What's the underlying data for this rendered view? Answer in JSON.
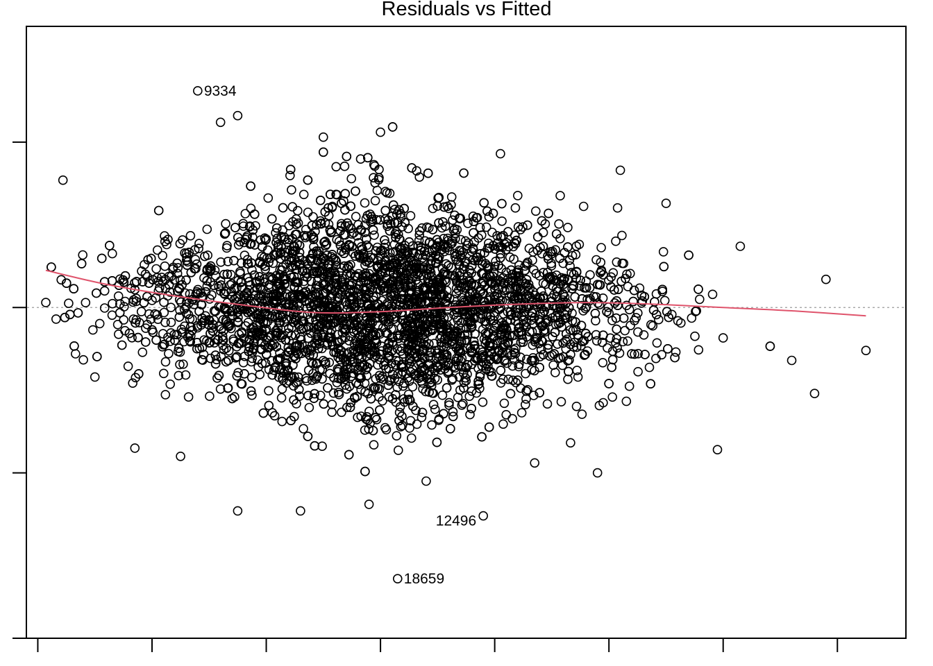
{
  "chart_data": {
    "type": "scatter",
    "title": "Residuals vs Fitted",
    "xlabel": "",
    "ylabel": "",
    "xlim": [
      -0.1,
      7.6
    ],
    "ylim": [
      -2,
      1.7
    ],
    "x_ticks": [
      0,
      1,
      2,
      3,
      4,
      5,
      6,
      7
    ],
    "y_ticks": [
      -2,
      -1,
      0,
      1
    ],
    "tick_labels_shown": false,
    "reference_line": {
      "y": 0,
      "style": "dotted",
      "color": "#999999"
    },
    "smoother": {
      "color": "#DF536B",
      "x": [
        0.07,
        0.6,
        1.2,
        1.8,
        2.4,
        3.0,
        3.6,
        4.2,
        4.8,
        5.4,
        6.0,
        6.6,
        7.25
      ],
      "y": [
        0.225,
        0.14,
        0.07,
        0.015,
        -0.03,
        -0.025,
        0.0,
        0.02,
        0.03,
        0.02,
        0.0,
        -0.02,
        -0.05
      ]
    },
    "point_style": {
      "shape": "open-circle",
      "color": "#000000"
    },
    "labeled_points": [
      {
        "id": "9334",
        "x": 1.4,
        "y": 1.31
      },
      {
        "id": "12496",
        "x": 3.9,
        "y": -1.26
      },
      {
        "id": "18659",
        "x": 3.15,
        "y": -1.64
      }
    ],
    "notable_points": [
      {
        "x": 0.07,
        "y": 0.03
      },
      {
        "x": 0.22,
        "y": 0.77
      },
      {
        "x": 0.16,
        "y": -0.07
      },
      {
        "x": 0.33,
        "y": -0.28
      },
      {
        "x": 0.5,
        "y": -0.42
      },
      {
        "x": 0.85,
        "y": -0.85
      },
      {
        "x": 1.25,
        "y": -0.9
      },
      {
        "x": 1.6,
        "y": 1.12
      },
      {
        "x": 1.75,
        "y": 1.16
      },
      {
        "x": 3.0,
        "y": 1.06
      },
      {
        "x": 2.5,
        "y": 1.03
      },
      {
        "x": 4.05,
        "y": 0.93
      },
      {
        "x": 5.1,
        "y": 0.83
      },
      {
        "x": 5.5,
        "y": 0.63
      },
      {
        "x": 6.15,
        "y": 0.37
      },
      {
        "x": 6.9,
        "y": 0.17
      },
      {
        "x": 7.25,
        "y": -0.26
      },
      {
        "x": 6.6,
        "y": -0.32
      },
      {
        "x": 6.8,
        "y": -0.52
      },
      {
        "x": 5.95,
        "y": -0.86
      },
      {
        "x": 4.9,
        "y": -1.0
      },
      {
        "x": 2.3,
        "y": -1.23
      },
      {
        "x": 1.75,
        "y": -1.23
      },
      {
        "x": 2.9,
        "y": -1.19
      },
      {
        "x": 3.4,
        "y": -1.05
      },
      {
        "x": 4.35,
        "y": -0.94
      }
    ]
  }
}
